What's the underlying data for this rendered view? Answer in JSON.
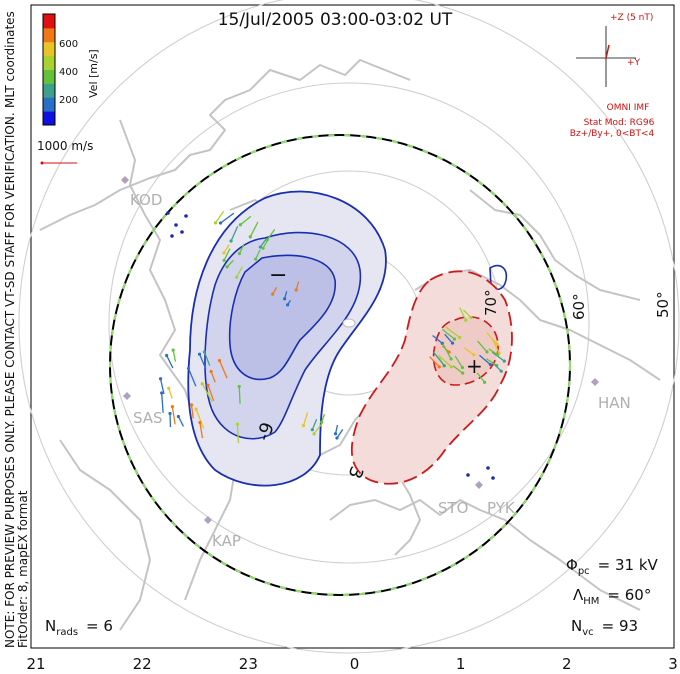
{
  "header": {
    "title": "15/Jul/2005 03:00-03:02 UT",
    "side_note_1": "NOTE: FOR PREVIEW PURPOSES ONLY. PLEASE CONTACT VT-SD STAFF FOR VERIFICATION.",
    "side_note_2": "FitOrder: 8, mapEX format",
    "coord_label": "MLT coordinates"
  },
  "colorbar": {
    "label": "Vel [m/s]",
    "ticks": [
      "600",
      "400",
      "200"
    ],
    "colors": [
      "#1010e0",
      "#2a6ec8",
      "#3da08a",
      "#62c23c",
      "#a8d232",
      "#e8c428",
      "#f07818",
      "#e01010"
    ]
  },
  "scale": {
    "label": "1000 m/s"
  },
  "imf": {
    "z_label": "+Z (5 nT)",
    "y_label": "+Y",
    "source": "OMNI IMF",
    "model": "Stat Mod: RG96",
    "condition": "Bz+/By+, 0<BT<4"
  },
  "stats": {
    "phi_label": "Φ",
    "phi_sub": "pc",
    "phi_value": "= 31 kV",
    "lambda_label": "Λ",
    "lambda_sub": "HM",
    "lambda_value": "= 60°",
    "nvc_label": "N",
    "nvc_sub": "vc",
    "nvc_value": "= 93",
    "nrads_label": "N",
    "nrads_sub": "rads",
    "nrads_value": "= 6"
  },
  "stations": [
    "KOD",
    "SAS",
    "KAP",
    "STO",
    "PYK",
    "HAN"
  ],
  "chart_data": {
    "type": "polar-map",
    "title": "15/Jul/2005 03:00-03:02 UT",
    "projection": "MLT polar, magnetic latitude rings",
    "lat_rings": [
      "70°",
      "60°",
      "50°"
    ],
    "mlt_ticks": [
      "21",
      "22",
      "23",
      "0",
      "1",
      "2",
      "3"
    ],
    "heppner_maynard_boundary_deg": 60,
    "potential_kV": {
      "cross_polar_cap": 31
    },
    "contours": [
      {
        "label": "-9",
        "sign": "negative",
        "cell": "dusk"
      },
      {
        "label": "3",
        "sign": "positive",
        "cell": "dawn"
      }
    ],
    "extrema_markers": [
      "−",
      "+"
    ],
    "colors": {
      "negative_cell": "#1a2fb0",
      "positive_cell": "#cc1a1a",
      "boundary": "#000000",
      "coast": "#c8c8c8",
      "grid": "#cfcfcf"
    }
  }
}
